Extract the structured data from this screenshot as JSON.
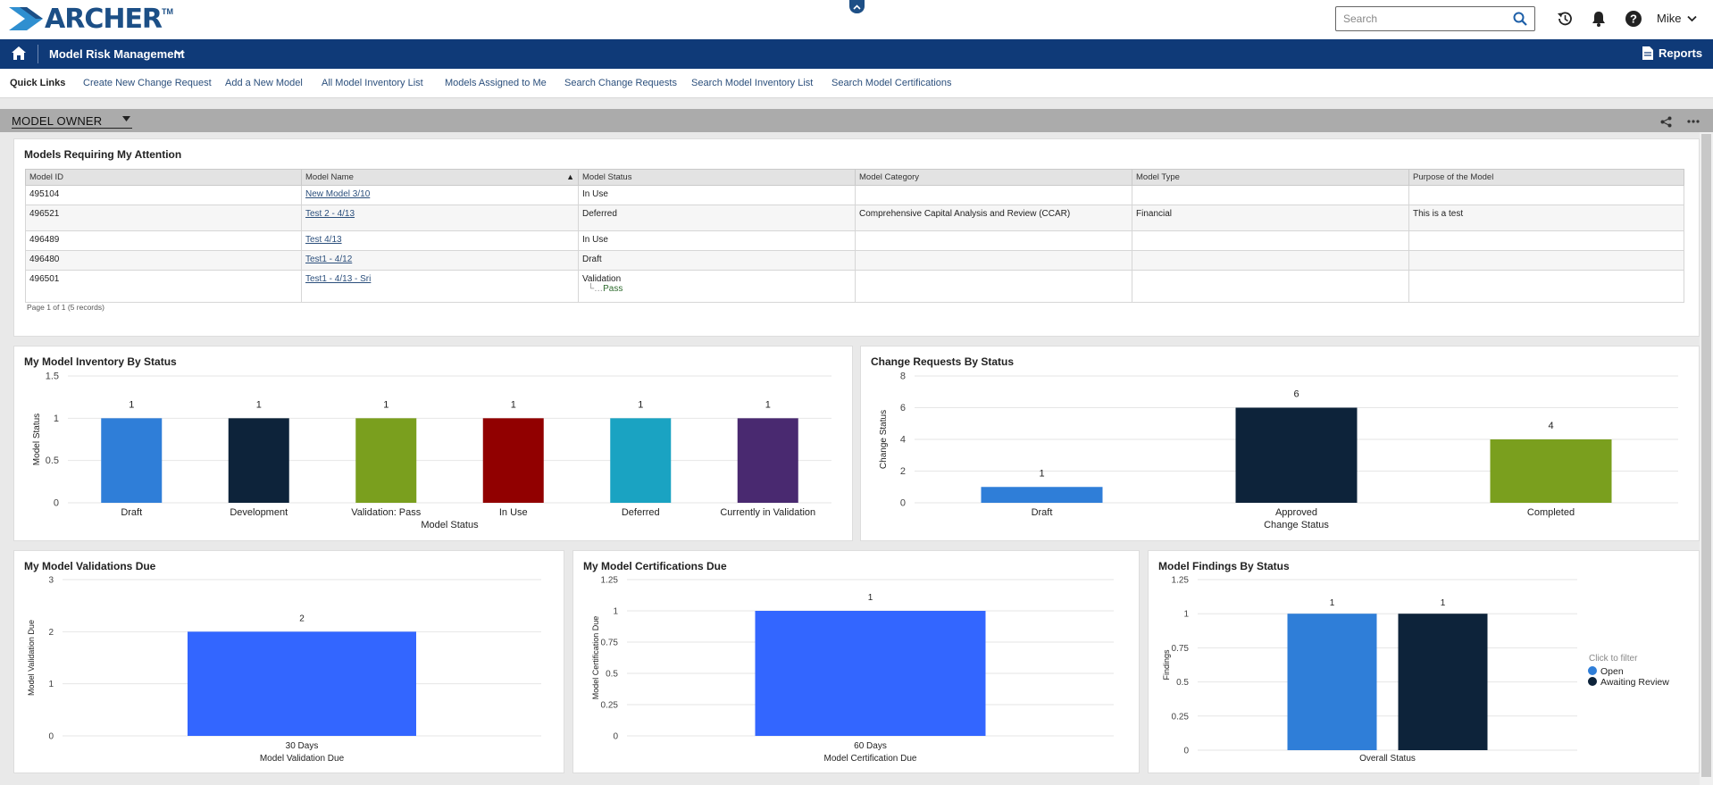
{
  "header": {
    "logo_text": "ARCHER",
    "logo_tm": "TM",
    "search_placeholder": "Search",
    "user": "Mike",
    "icons": [
      "history-icon",
      "bell-icon",
      "help-icon"
    ]
  },
  "nav": {
    "title": "Model Risk Management",
    "reports_label": "Reports"
  },
  "quick_links": {
    "title": "Quick Links",
    "links": [
      "Create New Change Request",
      "Add a New Model",
      "All Model Inventory List",
      "Models Assigned to Me",
      "Search Change Requests",
      "Search Model Inventory List",
      "Search Model Certifications"
    ]
  },
  "workspace": {
    "selected": "MODEL OWNER"
  },
  "attention": {
    "title": "Models Requiring My Attention",
    "columns": [
      "Model ID",
      "Model Name",
      "Model Status",
      "Model Category",
      "Model Type",
      "Purpose of the Model"
    ],
    "rows": [
      {
        "id": "495104",
        "name": "New Model 3/10",
        "status": "In Use",
        "sub": "",
        "category": "",
        "type": "",
        "purpose": ""
      },
      {
        "id": "496521",
        "name": "Test 2 - 4/13",
        "status": "Deferred",
        "sub": "",
        "category": "Comprehensive Capital Analysis and Review (CCAR)",
        "type": "Financial",
        "purpose": "This is a test"
      },
      {
        "id": "496489",
        "name": "Test 4/13",
        "status": "In Use",
        "sub": "",
        "category": "",
        "type": "",
        "purpose": ""
      },
      {
        "id": "496480",
        "name": "Test1 - 4/12",
        "status": "Draft",
        "sub": "",
        "category": "",
        "type": "",
        "purpose": ""
      },
      {
        "id": "496501",
        "name": "Test1 - 4/13 - Sri",
        "status": "Validation",
        "sub": "Pass",
        "category": "",
        "type": "",
        "purpose": ""
      }
    ],
    "pager": "Page 1 of 1 (5 records)"
  },
  "colors": {
    "blue": "#2f7ed8",
    "navy": "#0d233a",
    "green": "#8bbc21",
    "maroon": "#910000",
    "teal": "#1aadce",
    "purple": "#492970",
    "bright_blue": "#3366ff"
  },
  "chart_data": [
    {
      "id": "inventory",
      "title": "My Model Inventory By Status",
      "type": "bar",
      "categories": [
        "Draft",
        "Development",
        "Validation: Pass",
        "In Use",
        "Deferred",
        "Currently in Validation"
      ],
      "values": [
        1,
        1,
        1,
        1,
        1,
        1
      ],
      "colors": [
        "#2f7ed8",
        "#0d233a",
        "#7a9f1e",
        "#910000",
        "#1aa3c2",
        "#492970"
      ],
      "xlabel": "Model Status",
      "ylabel": "Model Status",
      "yticks": [
        "0",
        "0.5",
        "1",
        "1.5"
      ],
      "ylim": [
        0,
        1.5
      ]
    },
    {
      "id": "change",
      "title": "Change Requests By Status",
      "type": "bar",
      "categories": [
        "Draft",
        "Approved",
        "Completed"
      ],
      "values": [
        1,
        6,
        4
      ],
      "colors": [
        "#2f7ed8",
        "#0d233a",
        "#7a9f1e"
      ],
      "xlabel": "Change Status",
      "ylabel": "Change Status",
      "yticks": [
        "0",
        "2",
        "4",
        "6",
        "8"
      ],
      "ylim": [
        0,
        8
      ]
    },
    {
      "id": "validations",
      "title": "My Model Validations Due",
      "type": "bar",
      "categories": [
        "30 Days"
      ],
      "values": [
        2
      ],
      "colors": [
        "#3366ff"
      ],
      "xlabel": "Model Validation Due",
      "ylabel": "Model Validation Due",
      "yticks": [
        "0",
        "1",
        "2",
        "3"
      ],
      "ylim": [
        0,
        3
      ]
    },
    {
      "id": "certifications",
      "title": "My Model Certifications Due",
      "type": "bar",
      "categories": [
        "60 Days"
      ],
      "values": [
        1
      ],
      "colors": [
        "#3366ff"
      ],
      "xlabel": "Model Certification Due",
      "ylabel": "Model Certification Due",
      "yticks": [
        "0",
        "0.25",
        "0.5",
        "0.75",
        "1",
        "1.25"
      ],
      "ylim": [
        0,
        1.25
      ]
    },
    {
      "id": "findings",
      "title": "Model Findings By Status",
      "type": "bar",
      "categories": [
        "Overall Status"
      ],
      "series": [
        {
          "name": "Open",
          "values": [
            1
          ],
          "color": "#2f7ed8"
        },
        {
          "name": "Awaiting Review",
          "values": [
            1
          ],
          "color": "#0d233a"
        }
      ],
      "xlabel": "",
      "ylabel": "Findings",
      "yticks": [
        "0",
        "0.25",
        "0.5",
        "0.75",
        "1",
        "1.25"
      ],
      "ylim": [
        0,
        1.25
      ],
      "legend_title": "Click to filter",
      "legend_position": "right"
    }
  ]
}
